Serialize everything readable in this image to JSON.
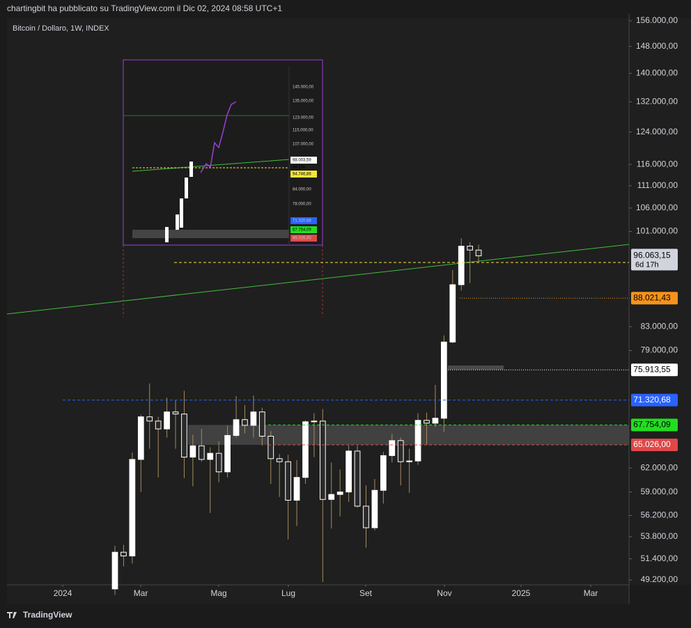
{
  "header": "chartingbit ha pubblicato su TradingView.com il Dic 02, 2024 08:58 UTC+1",
  "footer": "TradingView",
  "chart_data": {
    "type": "candlestick",
    "title": "Bitcoin / Dollaro, 1W, INDEX",
    "log_scale": true,
    "up_color": "#ffffff",
    "down_color": "#2a2a2a",
    "wick_color": "#a88a5c",
    "open": [
      48300,
      52100,
      51700,
      63100,
      68900,
      68300,
      67200,
      69600,
      69300,
      63400,
      64900,
      63100,
      63900,
      61500,
      66300,
      68500,
      67700,
      69600,
      66200,
      63200,
      62800,
      58000,
      60800,
      68200,
      68300,
      58100,
      58700,
      59000,
      64200,
      57300,
      54800,
      59200,
      63600,
      65600,
      62800,
      62900,
      68400,
      68000,
      68700,
      80400,
      90500,
      98000,
      97200
    ],
    "high": [
      52800,
      52900,
      64000,
      69200,
      73800,
      68900,
      71700,
      71300,
      72700,
      66400,
      67200,
      64700,
      65500,
      67700,
      71900,
      70600,
      72000,
      70200,
      66900,
      63800,
      63700,
      63000,
      68400,
      69400,
      70000,
      62700,
      61800,
      65000,
      64900,
      59800,
      60600,
      64100,
      66500,
      66000,
      64500,
      69400,
      69500,
      73600,
      81500,
      93300,
      99600,
      98800,
      98300
    ],
    "low": [
      47700,
      50600,
      50900,
      59000,
      64500,
      60800,
      66000,
      64500,
      60700,
      59700,
      62800,
      56500,
      60200,
      60800,
      66000,
      66600,
      66000,
      64900,
      60000,
      58400,
      53500,
      55000,
      60000,
      63400,
      49000,
      54700,
      56100,
      57800,
      57100,
      52600,
      54500,
      57600,
      62700,
      59800,
      58900,
      62400,
      65100,
      67500,
      66800,
      80200,
      89400,
      90800,
      94700
    ],
    "close": [
      52100,
      51700,
      63100,
      68900,
      68300,
      67200,
      69600,
      69300,
      63400,
      64900,
      63100,
      63900,
      61500,
      66300,
      68500,
      67700,
      69600,
      66200,
      63200,
      62800,
      58000,
      60800,
      68200,
      68300,
      58100,
      58700,
      59000,
      64200,
      57300,
      54800,
      59200,
      63600,
      65600,
      62800,
      62900,
      68400,
      68000,
      68700,
      80400,
      90500,
      98000,
      97200,
      96063.15
    ],
    "xlim": [
      -12.47,
      59.37
    ],
    "xticks": [
      {
        "value": -6.03,
        "label": "2024"
      },
      {
        "value": 2.98,
        "label": "Mar"
      },
      {
        "value": 11.99,
        "label": "Mag"
      },
      {
        "value": 20.03,
        "label": "Lug"
      },
      {
        "value": 28.96,
        "label": "Set"
      },
      {
        "value": 38.05,
        "label": "Nov"
      },
      {
        "value": 46.9,
        "label": "2025"
      },
      {
        "value": 54.95,
        "label": "Mar"
      }
    ],
    "ylim": [
      48710,
      156900
    ],
    "yticks": [
      {
        "value": 156000,
        "label": "156.000,00"
      },
      {
        "value": 148000,
        "label": "148.000,00"
      },
      {
        "value": 140000,
        "label": "140.000,00"
      },
      {
        "value": 132000,
        "label": "132.000,00"
      },
      {
        "value": 124000,
        "label": "124.000,00"
      },
      {
        "value": 116000,
        "label": "116.000,00"
      },
      {
        "value": 111000,
        "label": "111.000,00"
      },
      {
        "value": 106000,
        "label": "106.000,00"
      },
      {
        "value": 101000,
        "label": "101.000,00"
      },
      {
        "value": 83000,
        "label": "83.000,00"
      },
      {
        "value": 79000,
        "label": "79.000,00"
      },
      {
        "value": 62000,
        "label": "62.000,00"
      },
      {
        "value": 59000,
        "label": "59.000,00"
      },
      {
        "value": 56200,
        "label": "56.200,00"
      },
      {
        "value": 53800,
        "label": "53.800,00"
      },
      {
        "value": 51400,
        "label": "51.400,00"
      },
      {
        "value": 49200,
        "label": "49.200,00"
      }
    ],
    "levels": [
      {
        "value": 94746.86,
        "label": "94.746,86",
        "color": "#f5e53a"
      },
      {
        "value": 88021.43,
        "label": "88.021,43",
        "color": "#f7931a"
      },
      {
        "value": 75913.55,
        "label": "75.913,55",
        "color": "#ffffff"
      },
      {
        "value": 71320.68,
        "label": "71.320,68",
        "color": "#2962ff"
      },
      {
        "value": 67754.09,
        "label": "67.754,09",
        "color": "#22dd22"
      },
      {
        "value": 65026,
        "label": "65.026,00",
        "color": "#e04848"
      }
    ],
    "last_price": {
      "value": 96063.15,
      "label": "96.063,15",
      "countdown": "6d 17h"
    },
    "inset_labels": [
      "145.000,00",
      "135.000,00",
      "123.000,00",
      "115.000,00",
      "107.000,00",
      "98.003,59",
      "6d 16h",
      "94.746,86",
      "84.000,00",
      "78.000,00",
      "71.320,68",
      "67.754,09",
      "65.026,00"
    ]
  }
}
